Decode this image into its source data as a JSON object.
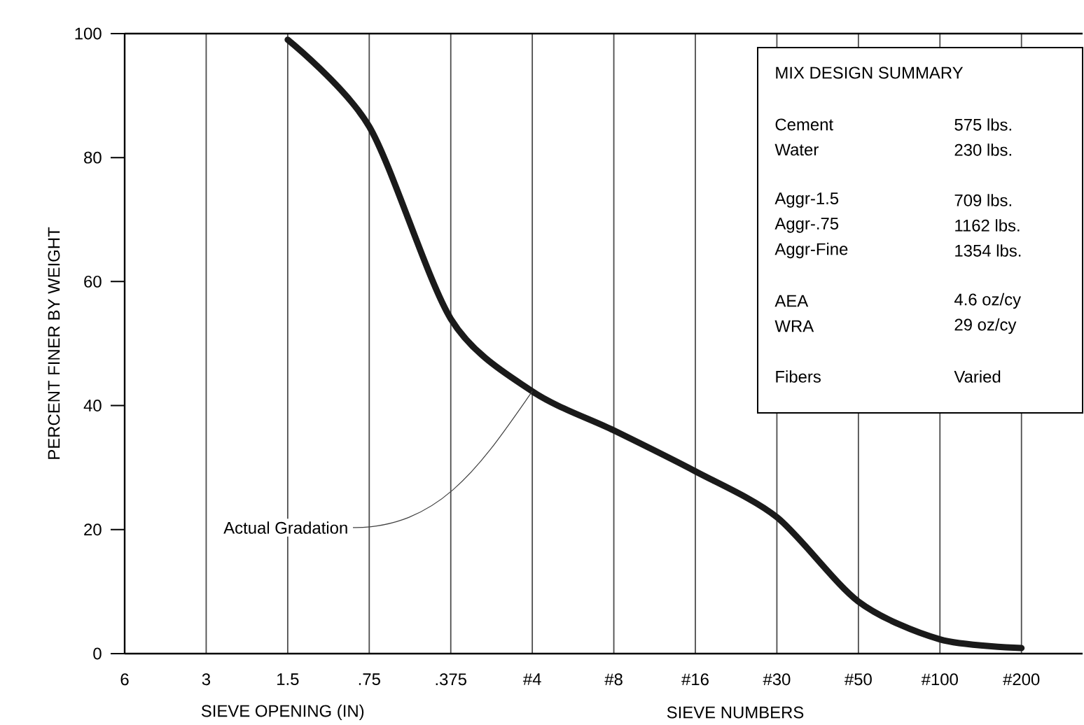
{
  "chart_data": {
    "type": "line",
    "xlabel": "SIEVE OPENING (IN)",
    "ylabel": "PERCENT FINER BY WEIGHT",
    "categories": [
      "6",
      "3",
      "1.5",
      ".75",
      ".375",
      "#4",
      "#8",
      "#16",
      "#30",
      "#50",
      "#100",
      "#200"
    ],
    "ylim": [
      0,
      100
    ],
    "yticks": [
      0,
      20,
      40,
      60,
      80,
      100
    ],
    "grid": "x",
    "marker": "none",
    "line_style": "solid",
    "series": [
      {
        "color": "#1a1a1a",
        "values": [
          null,
          null,
          99,
          85,
          54,
          42.3,
          36,
          29.4,
          22,
          8.4,
          2.3,
          0.9
        ]
      }
    ],
    "annotations": [
      "MIX DESIGN SUMMARY",
      "Cement",
      "575 lbs.",
      "Water",
      "230 lbs.",
      "Aggr-1.5",
      "709 lbs.",
      "Aggr-.75",
      "1162 lbs.",
      "Aggr-Fine",
      "1354 lbs.",
      "AEA",
      "4.6 oz/cy",
      "WRA",
      "29 oz/cy",
      "Fibers",
      "Varied",
      {
        "text": "Actual Gradation",
        "x": "#4",
        "y": 42.3
      },
      "SIEVE NUMBERS"
    ]
  }
}
